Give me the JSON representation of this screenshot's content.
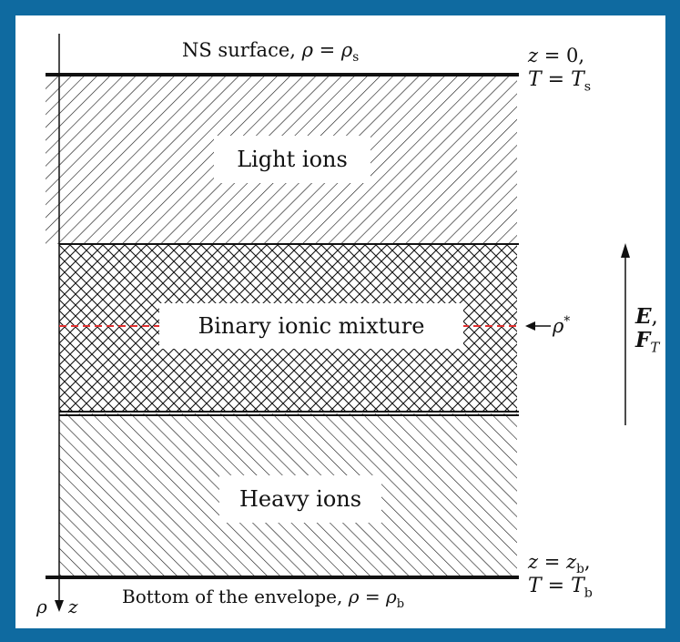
{
  "colors": {
    "frame": "#0f6aa0",
    "ink": "#111111",
    "dashed": "#e03030"
  },
  "top": {
    "surface_text": "NS surface, ",
    "surface_rho": "ρ",
    "surface_eq": " = ",
    "surface_rho_s": "ρ",
    "surface_sub": "s",
    "z_label": "z",
    "z_eq": " = 0,",
    "T_label": "T",
    "T_eq": " = ",
    "T_s": "T",
    "T_sub": "s"
  },
  "layers": {
    "light": "Light ions",
    "binary": "Binary ionic mixture",
    "heavy": "Heavy ions"
  },
  "rho_star": {
    "symbol": "ρ",
    "sup": "*"
  },
  "force": {
    "E": "E",
    "comma": ",",
    "F": "F",
    "F_sub": "T"
  },
  "bottom": {
    "envelope_text": "Bottom of the envelope, ",
    "rho": "ρ",
    "eq": " = ",
    "rho_b": "ρ",
    "rho_b_sub": "b",
    "z_label": "z",
    "z_eq": " = ",
    "z_b": "z",
    "z_b_sub": "b",
    "z_comma": ",",
    "T_label": "T",
    "T_eq": " = ",
    "T_b": "T",
    "T_b_sub": "b"
  },
  "axis": {
    "rho": "ρ",
    "z": "z"
  }
}
